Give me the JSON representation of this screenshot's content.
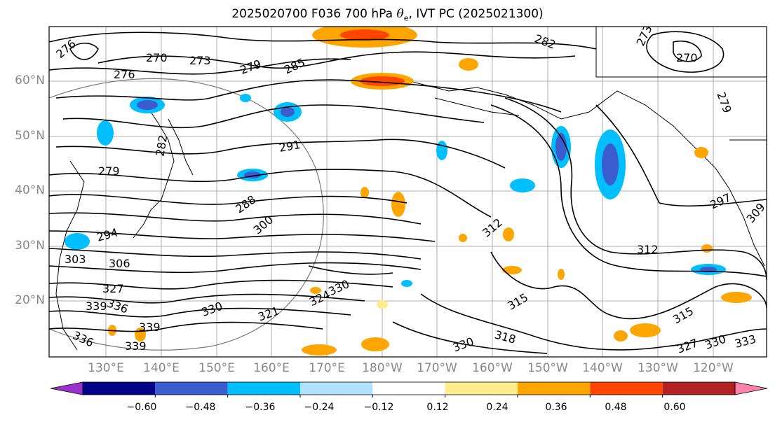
{
  "title": {
    "prefix": "2025020700 F036 700 hPa ",
    "symbol": "θ",
    "subscript": "e",
    "suffix": ", IVT PC (2025021300)"
  },
  "map": {
    "region": "North Pacific",
    "lat_labels": [
      "60°N",
      "50°N",
      "40°N",
      "30°N",
      "20°N"
    ],
    "lon_labels": [
      "130°E",
      "140°E",
      "150°E",
      "160°E",
      "170°E",
      "180°W",
      "170°W",
      "160°W",
      "150°W",
      "140°W",
      "130°W",
      "120°W"
    ],
    "contour_color": "#000000",
    "graticule_color": "#999999",
    "contour_labels": [
      "276",
      "270",
      "273",
      "276",
      "279",
      "285",
      "282",
      "273",
      "270",
      "279",
      "282",
      "279",
      "291",
      "288",
      "300",
      "312",
      "297",
      "309",
      "294",
      "303",
      "306",
      "312",
      "327",
      "336",
      "339",
      "330",
      "324",
      "330",
      "315",
      "315",
      "339",
      "339",
      "336",
      "321",
      "318",
      "327",
      "330",
      "333",
      "330"
    ]
  },
  "colorbar": {
    "tick_labels": [
      "−0.60",
      "−0.48",
      "−0.36",
      "−0.24",
      "−0.12",
      "0.12",
      "0.24",
      "0.36",
      "0.48",
      "0.60"
    ],
    "colors": [
      "#9932cc",
      "#00008b",
      "#3a5ccf",
      "#00bfff",
      "#b0e2ff",
      "#ffffff",
      "#ffec8b",
      "#ffa500",
      "#ff4500",
      "#b22222",
      "#ff82ab"
    ]
  }
}
